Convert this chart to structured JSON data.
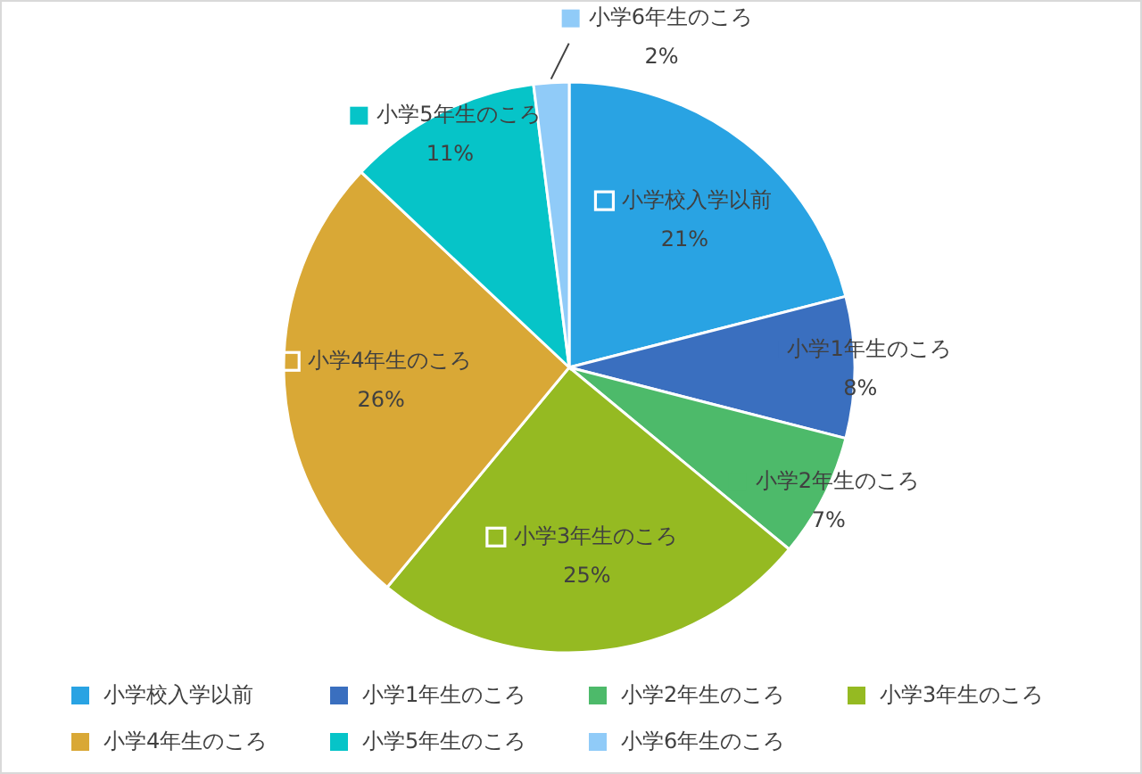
{
  "chart_data": {
    "type": "pie",
    "categories": [
      "小学校入学以前",
      "小学1年生のころ",
      "小学2年生のころ",
      "小学3年生のころ",
      "小学4年生のころ",
      "小学5年生のころ",
      "小学6年生のころ"
    ],
    "values": [
      21,
      8,
      7,
      25,
      26,
      11,
      2
    ],
    "value_labels": [
      "21%",
      "8%",
      "7%",
      "25%",
      "26%",
      "11%",
      "2%"
    ],
    "colors": [
      "#29a3e3",
      "#3a6fbf",
      "#4dba6a",
      "#95ba22",
      "#d9a836",
      "#06c4c8",
      "#90cbf8"
    ],
    "legend": "bottom"
  }
}
